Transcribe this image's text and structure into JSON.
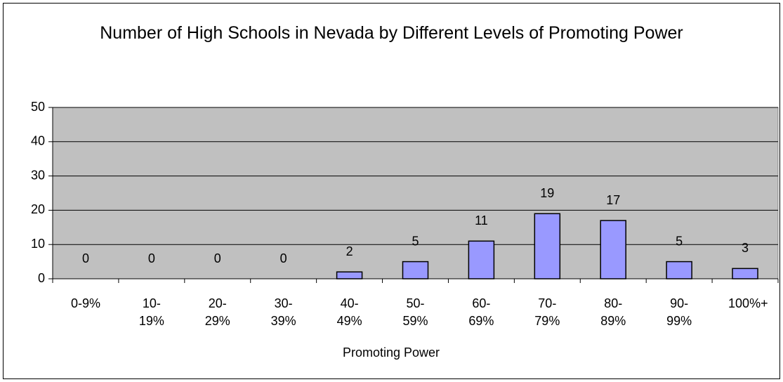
{
  "chart_data": {
    "type": "bar",
    "title": "Number of High Schools in Nevada by Different Levels of Promoting Power",
    "x_label": "Promoting Power",
    "categories": [
      "0-9%",
      "10-19%",
      "20-29%",
      "30-39%",
      "40-49%",
      "50-59%",
      "60-69%",
      "70-79%",
      "80-89%",
      "90-99%",
      "100%+"
    ],
    "values": [
      0,
      0,
      0,
      0,
      2,
      5,
      11,
      19,
      17,
      5,
      3
    ],
    "color": "#9999ff",
    "ylim": [
      0,
      50
    ],
    "yticks": [
      0,
      10,
      20,
      30,
      40,
      50
    ],
    "grid": true
  }
}
